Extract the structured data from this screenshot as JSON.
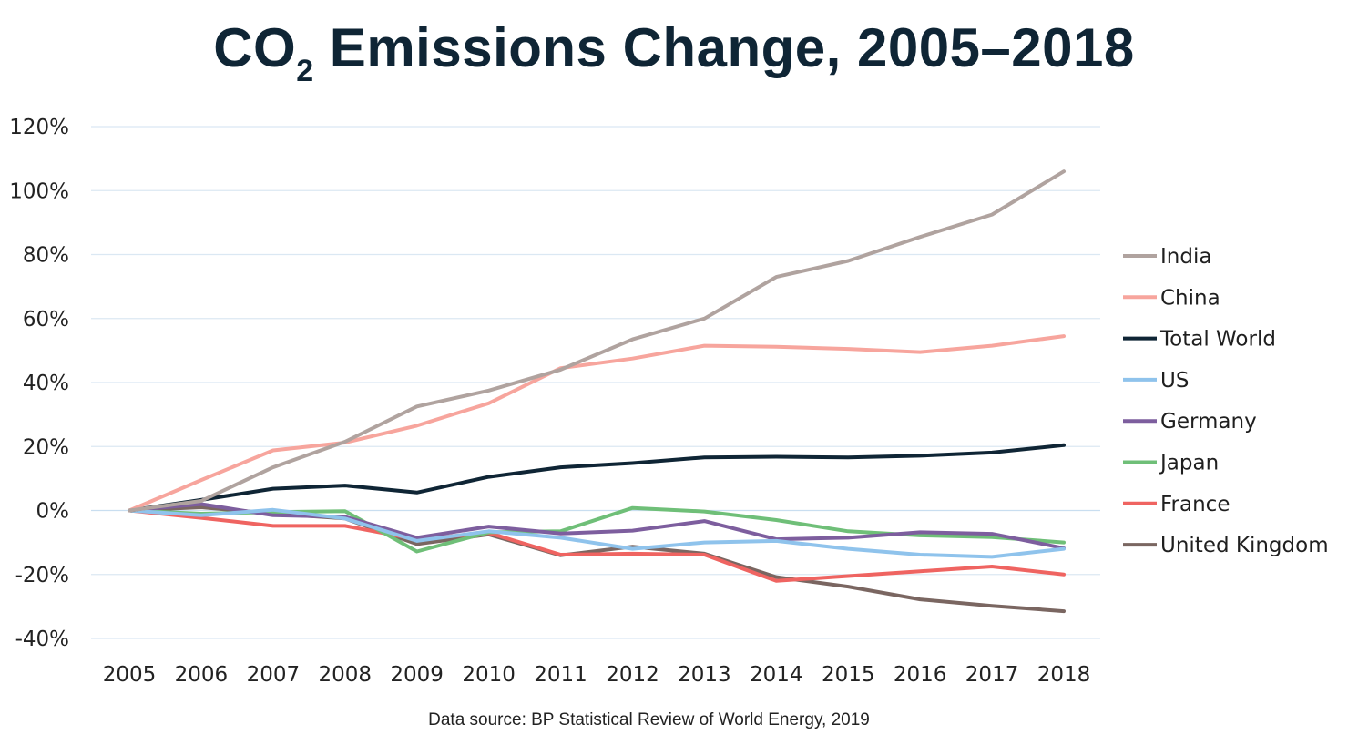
{
  "chart_data": {
    "type": "line",
    "title_main": "CO",
    "title_sub": "2",
    "title_rest": " Emissions Change, 2005–2018",
    "source": "Data source: BP Statistical Review of World Energy, 2019",
    "x": [
      "2005",
      "2006",
      "2007",
      "2008",
      "2009",
      "2010",
      "2011",
      "2012",
      "2013",
      "2014",
      "2015",
      "2016",
      "2017",
      "2018"
    ],
    "ylim": [
      -40,
      120
    ],
    "yticks": [
      -40,
      -20,
      0,
      20,
      40,
      60,
      80,
      100,
      120
    ],
    "ytick_labels": [
      "-40%",
      "-20%",
      "0%",
      "20%",
      "40%",
      "60%",
      "80%",
      "100%",
      "120%"
    ],
    "grid": true,
    "legend_position": "right",
    "series": [
      {
        "name": "India",
        "color": "#b0a39f",
        "values": [
          0,
          3,
          13.5,
          21.5,
          32.5,
          37.5,
          44,
          53.5,
          60,
          73,
          78,
          85.5,
          92.5,
          106
        ]
      },
      {
        "name": "China",
        "color": "#f7a59d",
        "values": [
          0,
          9.5,
          18.8,
          21.2,
          26.5,
          33.5,
          44.5,
          47.5,
          51.5,
          51.2,
          50.5,
          49.5,
          51.5,
          54.5
        ]
      },
      {
        "name": "Total World",
        "color": "#0f2535",
        "values": [
          0,
          3.3,
          6.8,
          7.8,
          5.6,
          10.5,
          13.5,
          14.8,
          16.6,
          16.8,
          16.6,
          17.1,
          18.1,
          20.4
        ]
      },
      {
        "name": "US",
        "color": "#8fc3ec",
        "values": [
          0,
          -1.5,
          0.2,
          -2.5,
          -9.5,
          -6.5,
          -8.5,
          -12,
          -10,
          -9.5,
          -12,
          -13.8,
          -14.5,
          -12
        ]
      },
      {
        "name": "Germany",
        "color": "#7d5e9e",
        "values": [
          0,
          2,
          -1.5,
          -2,
          -8.5,
          -5,
          -7.2,
          -6.3,
          -3.3,
          -9,
          -8.5,
          -6.8,
          -7.3,
          -11.8
        ]
      },
      {
        "name": "Japan",
        "color": "#6fbf78",
        "values": [
          0,
          -1,
          -0.5,
          -0.2,
          -12.8,
          -6.8,
          -6.5,
          0.8,
          -0.3,
          -3,
          -6.5,
          -7.8,
          -8.3,
          -10
        ]
      },
      {
        "name": "France",
        "color": "#ef6461",
        "values": [
          0,
          -2.3,
          -4.8,
          -4.8,
          -9,
          -7,
          -13.8,
          -13.5,
          -13.8,
          -22,
          -20.5,
          -19,
          -17.5,
          -20
        ]
      },
      {
        "name": "United Kingdom",
        "color": "#7a6661",
        "values": [
          0,
          1,
          -1,
          -2.5,
          -10.5,
          -7.5,
          -14,
          -11.3,
          -13.5,
          -20.8,
          -23.8,
          -27.8,
          -29.8,
          -31.5
        ]
      }
    ]
  }
}
